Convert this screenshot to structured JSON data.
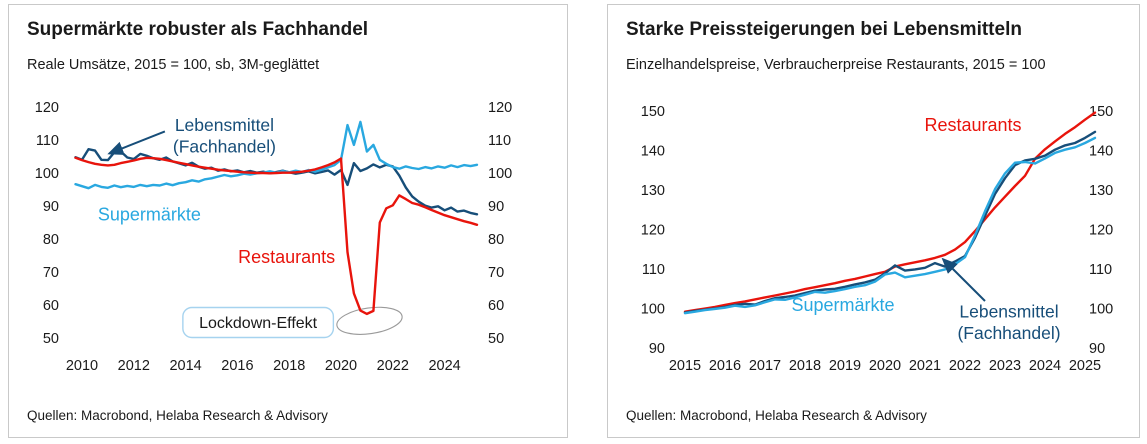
{
  "colors": {
    "navy": "#174e79",
    "light_blue": "#29a8e0",
    "red": "#e8140c",
    "axis_text": "#1a1a1a",
    "card_border": "#c9c9c9",
    "ellipse_gray": "#9a9a9a",
    "box_border": "#a6d3ef"
  },
  "charts": [
    {
      "title": "Supermärkte robuster als Fachhandel",
      "subtitle": "Reale Umsätze, 2015 = 100, sb, 3M-geglättet",
      "source": "Quellen: Macrobond, Helaba Research & Advisory",
      "chart_data": {
        "type": "line",
        "x_start": 2009.75,
        "x_step": 0.25,
        "xlim": [
          2009.5,
          2025.5
        ],
        "ylim": [
          50,
          120
        ],
        "grid": false,
        "y_axis_both_sides": true,
        "y_ticks": [
          120,
          110,
          100,
          90,
          80,
          70,
          60,
          50
        ],
        "x_ticks": [
          2010,
          2012,
          2014,
          2016,
          2018,
          2020,
          2022,
          2024
        ],
        "series": [
          {
            "name": "Lebensmittel (Fachhandel)",
            "color": "navy",
            "values": [
              104.8,
              104.0,
              107.2,
              106.8,
              104.0,
              103.9,
              106.3,
              106.5,
              104.7,
              104.2,
              105.8,
              105.2,
              104.5,
              104.0,
              104.7,
              103.5,
              102.9,
              102.3,
              103.1,
              101.9,
              101.3,
              101.6,
              100.7,
              101.1,
              100.5,
              100.8,
              100.2,
              100.6,
              100.1,
              100.4,
              99.9,
              100.3,
              100.7,
              100.2,
              99.8,
              100.1,
              100.5,
              99.9,
              100.3,
              100.8,
              99.5,
              100.9,
              96.4,
              103.0,
              100.6,
              101.4,
              102.6,
              101.7,
              102.5,
              102.0,
              99.2,
              95.6,
              92.9,
              91.3,
              90.1,
              89.5,
              89.9,
              88.7,
              89.5,
              88.3,
              88.6,
              87.9,
              87.5
            ]
          },
          {
            "name": "Supermärkte",
            "color": "light_blue",
            "values": [
              96.6,
              96.0,
              95.4,
              96.4,
              95.8,
              95.5,
              96.2,
              95.7,
              96.1,
              95.8,
              96.4,
              96.0,
              96.4,
              96.2,
              96.8,
              96.3,
              96.9,
              97.2,
              97.8,
              97.4,
              98.1,
              98.4,
              98.9,
              99.4,
              99.0,
              99.3,
              99.8,
              99.5,
              99.9,
              100.1,
              100.5,
              100.1,
              100.6,
              100.2,
              100.7,
              100.3,
              100.9,
              100.4,
              101.0,
              101.7,
              102.4,
              104.0,
              114.5,
              108.5,
              115.5,
              106.5,
              108.5,
              104.0,
              102.8,
              101.8,
              101.3,
              102.0,
              101.5,
              101.2,
              101.8,
              101.4,
              102.0,
              101.6,
              102.3,
              101.8,
              102.4,
              102.1,
              102.5
            ]
          },
          {
            "name": "Restaurants",
            "color": "red",
            "values": [
              104.6,
              103.9,
              103.3,
              102.8,
              102.5,
              102.3,
              102.5,
              103.0,
              103.4,
              103.8,
              104.3,
              104.6,
              104.5,
              104.3,
              103.9,
              103.5,
              103.1,
              102.7,
              102.3,
              101.9,
              101.6,
              101.3,
              101.0,
              100.8,
              100.6,
              100.4,
              100.2,
              100.1,
              100.0,
              100.0,
              99.9,
              100.0,
              100.1,
              100.1,
              100.2,
              100.4,
              100.7,
              101.1,
              101.7,
              102.4,
              103.2,
              104.4,
              76.0,
              63.5,
              58.3,
              57.3,
              58.2,
              85.0,
              89.3,
              90.2,
              93.2,
              92.1,
              90.9,
              90.4,
              89.6,
              88.8,
              88.0,
              87.2,
              86.6,
              86.0,
              85.4,
              84.9,
              84.3
            ]
          }
        ],
        "annotations": [
          {
            "type": "label",
            "lines": [
              "Lebensmittel",
              "(Fachhandel)"
            ],
            "color": "navy",
            "x": 2015.5,
            "y": 114.5,
            "font_size": 17.5
          },
          {
            "type": "arrow",
            "color": "navy",
            "from": {
              "x": 2013.2,
              "y": 112.6
            },
            "to": {
              "x": 2011.05,
              "y": 105.9
            }
          },
          {
            "type": "label",
            "lines": [
              "Supermärkte"
            ],
            "color": "light_blue",
            "x": 2012.6,
            "y": 87.5,
            "font_size": 18
          },
          {
            "type": "label",
            "lines": [
              "Restaurants"
            ],
            "color": "red",
            "x": 2017.9,
            "y": 74.5,
            "font_size": 18
          },
          {
            "type": "box_label",
            "text": "Lockdown-Effekt",
            "x": 2016.8,
            "y": 54.7,
            "font_size": 16
          },
          {
            "type": "ellipse",
            "x": 2021.1,
            "y": 55.2,
            "rx_x": 1.27,
            "ry_y": 3.9,
            "rotate": -8
          }
        ]
      }
    },
    {
      "title": "Starke Preissteigerungen bei Lebensmitteln",
      "subtitle": "Einzelhandelspreise, Verbraucherpreise Restaurants, 2015 = 100",
      "source": "Quellen: Macrobond, Helaba Research & Advisory",
      "chart_data": {
        "type": "line",
        "x_start": 2015.0,
        "x_step": 0.25,
        "xlim": [
          2014.8,
          2025.6
        ],
        "ylim": [
          90,
          150
        ],
        "grid": false,
        "y_axis_both_sides": true,
        "y_ticks": [
          150,
          140,
          130,
          120,
          110,
          100,
          90
        ],
        "x_ticks": [
          2015,
          2016,
          2017,
          2018,
          2019,
          2020,
          2021,
          2022,
          2023,
          2024,
          2025
        ],
        "series": [
          {
            "name": "Restaurants",
            "color": "red",
            "values": [
              99.2,
              99.6,
              100.0,
              100.4,
              100.9,
              101.4,
              101.8,
              102.3,
              102.8,
              103.3,
              103.8,
              104.3,
              104.9,
              105.4,
              105.9,
              106.4,
              107.0,
              107.5,
              108.1,
              108.7,
              109.3,
              110.6,
              111.2,
              111.7,
              112.2,
              112.8,
              113.6,
              114.9,
              116.8,
              119.6,
              122.6,
              125.6,
              128.3,
              131.0,
              133.6,
              137.9,
              140.3,
              142.3,
              144.2,
              145.9,
              147.8,
              149.6
            ]
          },
          {
            "name": "Lebensmittel (Fachhandel)",
            "color": "navy",
            "values": [
              99.0,
              99.4,
              99.7,
              100.0,
              100.4,
              100.9,
              101.2,
              101.0,
              101.9,
              102.6,
              102.9,
              103.3,
              103.9,
              104.5,
              104.8,
              105.0,
              105.5,
              106.1,
              106.6,
              107.3,
              108.9,
              110.9,
              109.6,
              109.9,
              110.3,
              111.5,
              110.6,
              111.9,
              113.3,
              117.9,
              123.5,
              129.0,
              133.0,
              136.3,
              137.5,
              137.9,
              138.7,
              140.2,
              141.3,
              141.9,
              143.2,
              144.7
            ]
          },
          {
            "name": "Supermärkte",
            "color": "light_blue",
            "values": [
              98.8,
              99.2,
              99.6,
              99.9,
              100.2,
              100.7,
              100.4,
              100.8,
              101.6,
              102.3,
              102.2,
              102.8,
              103.5,
              104.2,
              104.0,
              104.4,
              104.9,
              105.5,
              105.9,
              106.8,
              108.6,
              109.1,
              107.9,
              108.3,
              108.7,
              109.3,
              109.9,
              111.2,
              113.0,
              118.5,
              124.6,
              130.2,
              134.2,
              136.9,
              137.1,
              136.7,
              138.0,
              139.4,
              140.2,
              140.8,
              141.9,
              143.2
            ]
          }
        ],
        "annotations": [
          {
            "type": "label",
            "lines": [
              "Restaurants"
            ],
            "color": "red",
            "x": 2022.2,
            "y": 146.5,
            "font_size": 18
          },
          {
            "type": "label",
            "lines": [
              "Supermärkte"
            ],
            "color": "light_blue",
            "x": 2018.95,
            "y": 100.9,
            "font_size": 18
          },
          {
            "type": "label",
            "lines": [
              "Lebensmittel",
              "(Fachhandel)"
            ],
            "color": "navy",
            "x": 2023.1,
            "y": 99.2,
            "font_size": 17.5
          },
          {
            "type": "arrow",
            "color": "navy",
            "from": {
              "x": 2022.5,
              "y": 101.9
            },
            "to": {
              "x": 2021.45,
              "y": 112.5
            }
          }
        ]
      }
    }
  ]
}
